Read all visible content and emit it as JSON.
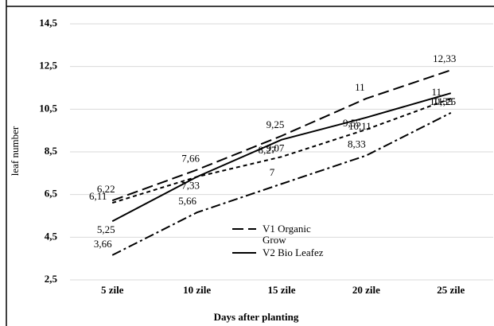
{
  "chart_data": {
    "type": "line",
    "x_label": "Days after planting",
    "y_label": "leaf number",
    "categories": [
      "5 zile",
      "10 zile",
      "15 zile",
      "20 zile",
      "25 zile"
    ],
    "ylim": [
      2.5,
      14.5
    ],
    "yticks": [
      {
        "value": 2.5,
        "label": "2,5"
      },
      {
        "value": 4.5,
        "label": "4,5"
      },
      {
        "value": 6.5,
        "label": "6,5"
      },
      {
        "value": 8.5,
        "label": "8,5"
      },
      {
        "value": 10.5,
        "label": "10,5"
      },
      {
        "value": 12.5,
        "label": "12,5"
      },
      {
        "value": 14.5,
        "label": "14,5"
      }
    ],
    "grid": true,
    "series": [
      {
        "name": "V1 Organic Grow",
        "color": "#000000",
        "dash": "14,6",
        "values": [
          6.22,
          7.66,
          9.25,
          11,
          12.33
        ],
        "value_labels": [
          "6,22",
          "7,66",
          "9,25",
          "11",
          "12,33"
        ]
      },
      {
        "name": "V2 Bio Leafez",
        "color": "#000000",
        "dash": "none",
        "values": [
          5.25,
          7.33,
          9.07,
          10.11,
          11.25
        ],
        "value_labels": [
          "5,25",
          "7,33",
          "9,07",
          "10,11",
          "11,25"
        ]
      },
      {
        "color": "#000000",
        "dash": "5,4",
        "values": [
          6.11,
          7.33,
          8.27,
          9.55,
          11
        ],
        "value_labels": [
          "6,11",
          null,
          "8,27",
          "9,55",
          "11"
        ]
      },
      {
        "color": "#000000",
        "dash": "12,4,3,4",
        "values": [
          3.66,
          5.66,
          7,
          8.33,
          10.33
        ],
        "value_labels": [
          "3,66",
          "5,66",
          "7",
          "8,33",
          "10,33"
        ]
      }
    ]
  }
}
